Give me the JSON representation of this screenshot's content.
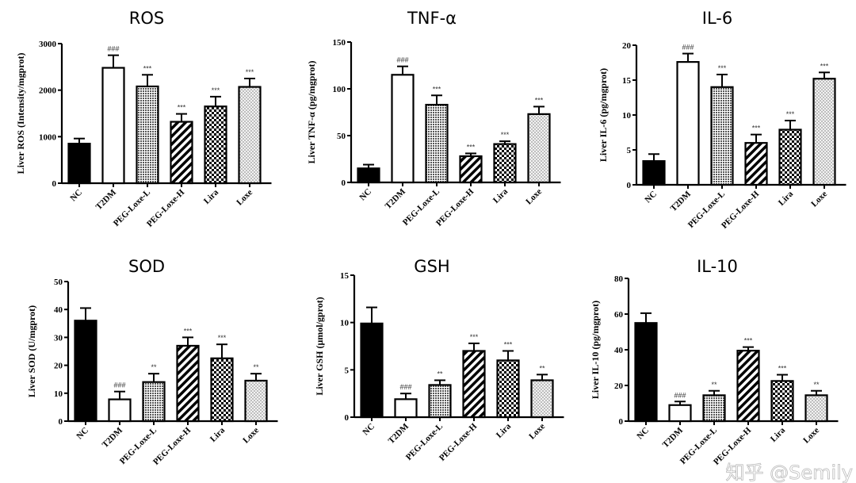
{
  "chart_data": [
    {
      "type": "bar",
      "title": "ROS",
      "ylabel": "Liver ROS (Intensity/mgprot)",
      "ylim": [
        0,
        3000
      ],
      "yticks": [
        0,
        1000,
        2000,
        3000
      ],
      "categories": [
        "NC",
        "T2DM",
        "PEG-Loxe-L",
        "PEG-Loxe-H",
        "Lira",
        "Loxe"
      ],
      "values": [
        850,
        2480,
        2080,
        1320,
        1650,
        2070
      ],
      "errors": [
        110,
        270,
        250,
        170,
        210,
        180
      ],
      "significance": [
        "",
        "###",
        "***",
        "***",
        "***",
        "***"
      ]
    },
    {
      "type": "bar",
      "title": "TNF-α",
      "ylabel": "Liver  TNF-α  (pg/mgprot)",
      "ylim": [
        0,
        150
      ],
      "yticks": [
        0,
        50,
        100,
        150
      ],
      "categories": [
        "NC",
        "T2DM",
        "PEG-Loxe-L",
        "PEG-Loxe-H",
        "Lira",
        "Loxe"
      ],
      "values": [
        15,
        115,
        83,
        28,
        41,
        73
      ],
      "errors": [
        4,
        9,
        10,
        3,
        3,
        8
      ],
      "significance": [
        "",
        "###",
        "***",
        "***",
        "***",
        "***"
      ]
    },
    {
      "type": "bar",
      "title": "IL-6",
      "ylabel": "Liver  IL-6 (pg/mgprot)",
      "ylim": [
        0,
        20
      ],
      "yticks": [
        0,
        5,
        10,
        15,
        20
      ],
      "categories": [
        "NC",
        "T2DM",
        "PEG-Loxe-L",
        "PEG-Loxe-H",
        "Lira",
        "Loxe"
      ],
      "values": [
        3.4,
        17.6,
        14,
        6,
        7.9,
        15.2
      ],
      "errors": [
        1,
        1.2,
        1.8,
        1.2,
        1.3,
        0.9
      ],
      "significance": [
        "",
        "###",
        "***",
        "***",
        "***",
        "***"
      ]
    },
    {
      "type": "bar",
      "title": "SOD",
      "ylabel": "Liver SOD (U/mgprot)",
      "ylim": [
        0,
        50
      ],
      "yticks": [
        0,
        10,
        20,
        30,
        40,
        50
      ],
      "categories": [
        "NC",
        "T2DM",
        "PEG-Loxe-L",
        "PEG-Loxe-H",
        "Lira",
        "Loxe"
      ],
      "values": [
        36,
        7.8,
        14,
        27,
        22.5,
        14.5
      ],
      "errors": [
        4.5,
        2.8,
        3,
        3,
        5,
        2.5
      ],
      "significance": [
        "",
        "###",
        "**",
        "***",
        "***",
        "**"
      ]
    },
    {
      "type": "bar",
      "title": "GSH",
      "ylabel": "Liver GSH (μmol/gprot)",
      "ylim": [
        0,
        15
      ],
      "yticks": [
        0,
        5,
        10,
        15
      ],
      "categories": [
        "NC",
        "T2DM",
        "PEG-Loxe-L",
        "PEG-Loxe-H",
        "Lira",
        "Loxe"
      ],
      "values": [
        9.9,
        1.9,
        3.4,
        7,
        6,
        3.9
      ],
      "errors": [
        1.7,
        0.6,
        0.5,
        0.8,
        1,
        0.6
      ],
      "significance": [
        "",
        "###",
        "**",
        "***",
        "***",
        "**"
      ]
    },
    {
      "type": "bar",
      "title": "IL-10",
      "ylabel": "Liver  IL-10 (pg/mgprot)",
      "ylim": [
        0,
        80
      ],
      "yticks": [
        0,
        20,
        40,
        60,
        80
      ],
      "categories": [
        "NC",
        "T2DM",
        "PEG-Loxe-L",
        "PEG-Loxe-H",
        "Lira",
        "Loxe"
      ],
      "values": [
        55,
        9,
        14.5,
        39.5,
        22.5,
        14.5
      ],
      "errors": [
        5.5,
        2,
        2.5,
        2,
        3.5,
        2.5
      ],
      "significance": [
        "",
        "###",
        "**",
        "***",
        "***",
        "**"
      ]
    }
  ],
  "watermark": "知乎 @Semily",
  "colors": {
    "axis": "#000000",
    "bar_edge": "#000000",
    "nc_fill": "#000000",
    "t2dm_fill": "#ffffff"
  }
}
